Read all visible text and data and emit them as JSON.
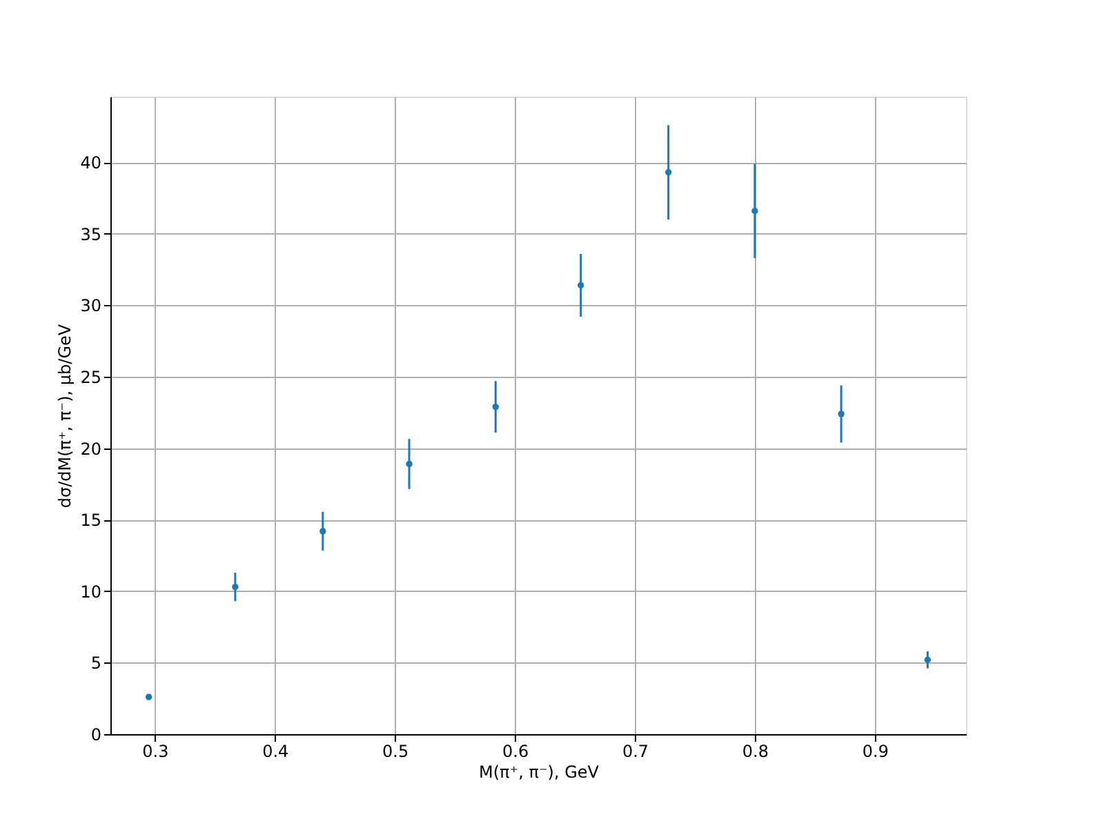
{
  "chart_data": {
    "type": "scatter",
    "xlabel": "M(π⁺, π⁻), GeV",
    "ylabel": "dσ/dM(π⁺, π⁻), μb/GeV",
    "x": [
      0.295,
      0.367,
      0.44,
      0.512,
      0.584,
      0.655,
      0.728,
      0.8,
      0.872,
      0.944
    ],
    "series": [
      {
        "color": "#1f77b4",
        "values": [
          2.6,
          10.3,
          14.2,
          18.9,
          22.9,
          31.4,
          39.3,
          36.6,
          22.4,
          5.2
        ],
        "errors": [
          0.1,
          1.0,
          1.35,
          1.75,
          1.8,
          2.2,
          3.3,
          3.3,
          2.0,
          0.6
        ]
      }
    ],
    "xlim": [
      0.263,
      0.976
    ],
    "xticks": [
      0.3,
      0.4,
      0.5,
      0.6,
      0.7,
      0.8,
      0.9
    ],
    "ylim": [
      0,
      44.6
    ],
    "yticks": [
      0,
      5,
      10,
      15,
      20,
      25,
      30,
      35,
      40
    ],
    "grid": true,
    "marker": "circle"
  }
}
